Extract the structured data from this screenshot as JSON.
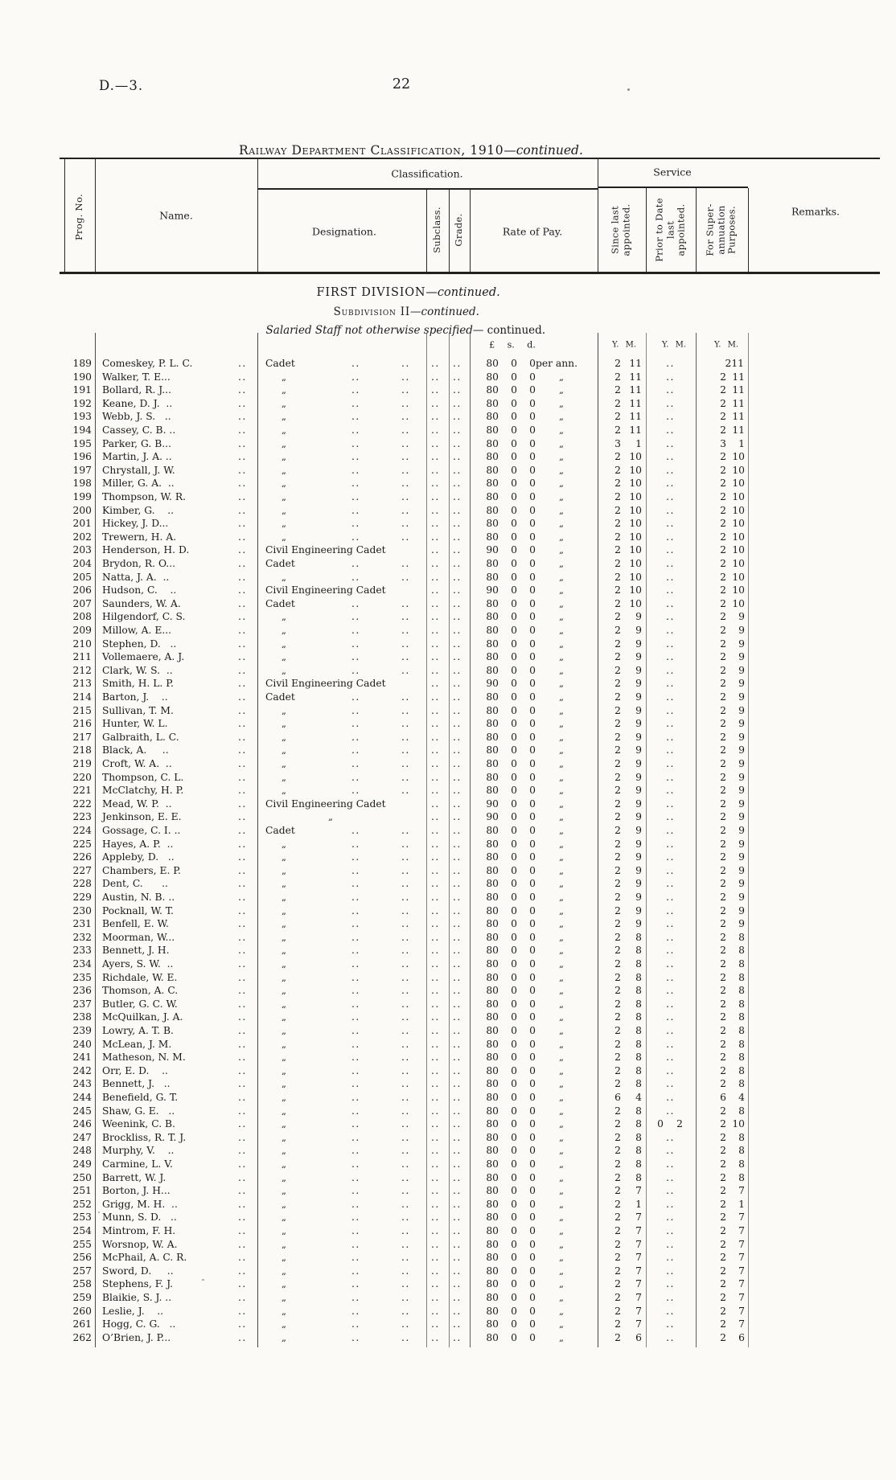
{
  "page": {
    "doc_ref": "D.—3.",
    "page_number": "22",
    "title_main": "Railway Department Classification, 1910",
    "title_cont": "—continued."
  },
  "table_header": {
    "classification": "Classification.",
    "service": "Service",
    "prog_no": "Prog. No.",
    "name": "Name.",
    "designation": "Designation.",
    "subclass": "Subclass.",
    "grade": "Grade.",
    "rate_of_pay": "Rate of Pay.",
    "since_last": "Since last\nappointed.",
    "prior_to": "Prior to Date\nlast\nappointed.",
    "super_purposes": "For Super-\nannuation\nPurposes.",
    "remarks": "Remarks."
  },
  "sections": {
    "division": "FIRST DIVISION",
    "division_cont": "—continued.",
    "subdivision": "Subdivision II",
    "subdivision_cont": "—continued.",
    "staff_note": "Salaried Staff not otherwise specified",
    "staff_note_cont": "— continued."
  },
  "units": {
    "currency": "£ s. d.",
    "ym": "Y. M."
  },
  "designations": {
    "cadet": "Cadet",
    "cec": "Civil Engineering Cadet",
    "ditto": "„"
  },
  "rate_s": "0",
  "rate_d": "0",
  "rate_first_suffix": "per ann.",
  "rate_ditto": "„",
  "dots": "..",
  "rows": [
    [
      189,
      "Comeskey, P. L. C.",
      "Cadet",
      "80",
      "2 11",
      "..",
      "211"
    ],
    [
      190,
      "Walker, T. E...",
      "dq",
      "80",
      "2 11",
      "..",
      "2 11"
    ],
    [
      191,
      "Bollard, R. J...",
      "dq",
      "80",
      "2 11",
      "..",
      "2 11"
    ],
    [
      192,
      "Keane, D. J.  ..",
      "dq",
      "80",
      "2 11",
      "..",
      "2 11"
    ],
    [
      193,
      "Webb, J. S.   ..",
      "dq",
      "80",
      "2 11",
      "..",
      "2 11"
    ],
    [
      194,
      "Cassey, C. B. ..",
      "dq",
      "80",
      "2 11",
      "..",
      "2 11"
    ],
    [
      195,
      "Parker, G. B...",
      "dq",
      "80",
      "3 1",
      "..",
      "3 1"
    ],
    [
      196,
      "Martin, J. A. ..",
      "dq",
      "80",
      "2 10",
      "..",
      "2 10"
    ],
    [
      197,
      "Chrystall, J. W.",
      "dq",
      "80",
      "2 10",
      "..",
      "2 10"
    ],
    [
      198,
      "Miller, G. A.  ..",
      "dq",
      "80",
      "2 10",
      "..",
      "2 10"
    ],
    [
      199,
      "Thompson, W. R.",
      "dq",
      "80",
      "2 10",
      "..",
      "2 10"
    ],
    [
      200,
      "Kimber, G.    ..",
      "dq",
      "80",
      "2 10",
      "..",
      "2 10"
    ],
    [
      201,
      "Hickey, J. D...",
      "dq",
      "80",
      "2 10",
      "..",
      "2 10"
    ],
    [
      202,
      "Trewern, H. A.",
      "dq",
      "80",
      "2 10",
      "..",
      "2 10"
    ],
    [
      203,
      "Henderson, H. D.",
      "CEC",
      "90",
      "2 10",
      "..",
      "2 10"
    ],
    [
      204,
      "Brydon, R. O...",
      "Cadet",
      "80",
      "2 10",
      "..",
      "2 10"
    ],
    [
      205,
      "Natta, J. A.  ..",
      "dq",
      "80",
      "2 10",
      "..",
      "2 10"
    ],
    [
      206,
      "Hudson, C.    ..",
      "CEC",
      "90",
      "2 10",
      "..",
      "2 10"
    ],
    [
      207,
      "Saunders, W. A.",
      "Cadet",
      "80",
      "2 10",
      "..",
      "2 10"
    ],
    [
      208,
      "Hilgendorf, C. S.",
      "dq",
      "80",
      "2 9",
      "..",
      "2 9"
    ],
    [
      209,
      "Millow, A. E...",
      "dq",
      "80",
      "2 9",
      "..",
      "2 9"
    ],
    [
      210,
      "Stephen, D.   ..",
      "dq",
      "80",
      "2 9",
      "..",
      "2 9"
    ],
    [
      211,
      "Vollemaere, A. J.",
      "dq",
      "80",
      "2 9",
      "..",
      "2 9"
    ],
    [
      212,
      "Clark, W. S.  ..",
      "dq",
      "80",
      "2 9",
      "..",
      "2 9"
    ],
    [
      213,
      "Smith, H. L. P.",
      "CEC",
      "90",
      "2 9",
      "..",
      "2 9"
    ],
    [
      214,
      "Barton, J.    ..",
      "Cadet",
      "80",
      "2 9",
      "..",
      "2 9"
    ],
    [
      215,
      "Sullivan, T. M.",
      "dq",
      "80",
      "2 9",
      "..",
      "2 9"
    ],
    [
      216,
      "Hunter, W. L.",
      "dq",
      "80",
      "2 9",
      "..",
      "2 9"
    ],
    [
      217,
      "Galbraith, L. C.",
      "dq",
      "80",
      "2 9",
      "..",
      "2 9"
    ],
    [
      218,
      "Black, A.     ..",
      "dq",
      "80",
      "2 9",
      "..",
      "2 9"
    ],
    [
      219,
      "Croft, W. A.  ..",
      "dq",
      "80",
      "2 9",
      "..",
      "2 9"
    ],
    [
      220,
      "Thompson, C. L.",
      "dq",
      "80",
      "2 9",
      "..",
      "2 9"
    ],
    [
      221,
      "McClatchy, H. P.",
      "dq",
      "80",
      "2 9",
      "..",
      "2 9"
    ],
    [
      222,
      "Mead, W. P.  ..",
      "CEC",
      "90",
      "2 9",
      "..",
      "2 9"
    ],
    [
      223,
      "Jenkinson, E. E.",
      "dqc",
      "90",
      "2 9",
      "..",
      "2 9"
    ],
    [
      224,
      "Gossage, C. I. ..",
      "Cadet",
      "80",
      "2 9",
      "..",
      "2 9"
    ],
    [
      225,
      "Hayes, A. P.  ..",
      "dq",
      "80",
      "2 9",
      "..",
      "2 9"
    ],
    [
      226,
      "Appleby, D.   ..",
      "dq",
      "80",
      "2 9",
      "..",
      "2 9"
    ],
    [
      227,
      "Chambers, E. P.",
      "dq",
      "80",
      "2 9",
      "..",
      "2 9"
    ],
    [
      228,
      "Dent, C.      ..",
      "dq",
      "80",
      "2 9",
      "..",
      "2 9"
    ],
    [
      229,
      "Austin, N. B. ..",
      "dq",
      "80",
      "2 9",
      "..",
      "2 9"
    ],
    [
      230,
      "Pocknall, W. T.",
      "dq",
      "80",
      "2 9",
      "..",
      "2 9"
    ],
    [
      231,
      "Benfell, E. W.",
      "dq",
      "80",
      "2 9",
      "..",
      "2 9"
    ],
    [
      232,
      "Moorman, W...",
      "dq",
      "80",
      "2 8",
      "..",
      "2 8"
    ],
    [
      233,
      "Bennett, J. H.",
      "dq",
      "80",
      "2 8",
      "..",
      "2 8"
    ],
    [
      234,
      "Ayers, S. W.  ..",
      "dq",
      "80",
      "2 8",
      "..",
      "2 8"
    ],
    [
      235,
      "Richdale, W. E.",
      "dq",
      "80",
      "2 8",
      "..",
      "2 8"
    ],
    [
      236,
      "Thomson, A. C.",
      "dq",
      "80",
      "2 8",
      "..",
      "2 8"
    ],
    [
      237,
      "Butler, G. C. W.",
      "dq",
      "80",
      "2 8",
      "..",
      "2 8"
    ],
    [
      238,
      "McQuilkan, J. A.",
      "dq",
      "80",
      "2 8",
      "..",
      "2 8"
    ],
    [
      239,
      "Lowry, A. T. B.",
      "dq",
      "80",
      "2 8",
      "..",
      "2 8"
    ],
    [
      240,
      "McLean, J. M.",
      "dq",
      "80",
      "2 8",
      "..",
      "2 8"
    ],
    [
      241,
      "Matheson, N. M.",
      "dq",
      "80",
      "2 8",
      "..",
      "2 8"
    ],
    [
      242,
      "Orr, E. D.    ..",
      "dq",
      "80",
      "2 8",
      "..",
      "2 8"
    ],
    [
      243,
      "Bennett, J.   ..",
      "dq",
      "80",
      "2 8",
      "..",
      "2 8"
    ],
    [
      244,
      "Benefield, G. T.",
      "dq",
      "80",
      "6 4",
      "..",
      "6 4"
    ],
    [
      245,
      "Shaw, G. E.   ..",
      "dq",
      "80",
      "2 8",
      "..",
      "2 8"
    ],
    [
      246,
      "Weenink, C. B.",
      "dq",
      "80",
      "2 8",
      "0 2",
      "2 10"
    ],
    [
      247,
      "Brockliss, R. T. J.",
      "dq",
      "80",
      "2 8",
      "..",
      "2 8"
    ],
    [
      248,
      "Murphy, V.    ..",
      "dq",
      "80",
      "2 8",
      "..",
      "2 8"
    ],
    [
      249,
      "Carmine, L. V.",
      "dq",
      "80",
      "2 8",
      "..",
      "2 8"
    ],
    [
      250,
      "Barrett, W. J.",
      "dq",
      "80",
      "2 8",
      "..",
      "2 8"
    ],
    [
      251,
      "Borton, J. H...",
      "dq",
      "80",
      "2 7",
      "..",
      "2 7"
    ],
    [
      252,
      "Grigg, M. H.  ..",
      "dq",
      "80",
      "2 1",
      "..",
      "2 1"
    ],
    [
      253,
      "Munn, S. D.   ..",
      "dq",
      "80",
      "2 7",
      "..",
      "2 7"
    ],
    [
      254,
      "Mintrom, F. H.",
      "dq",
      "80",
      "2 7",
      "..",
      "2 7"
    ],
    [
      255,
      "Worsnop, W. A.",
      "dq",
      "80",
      "2 7",
      "..",
      "2 7"
    ],
    [
      256,
      "McPhail, A. C. R.",
      "dq",
      "80",
      "2 7",
      "..",
      "2 7"
    ],
    [
      257,
      "Sword, D.     ..",
      "dq",
      "80",
      "2 7",
      "..",
      "2 7"
    ],
    [
      258,
      "Stephens, F. J.",
      "dq",
      "80",
      "2 7",
      "..",
      "2 7"
    ],
    [
      259,
      "Blaikie, S. J. ..",
      "dq",
      "80",
      "2 7",
      "..",
      "2 7"
    ],
    [
      260,
      "Leslie, J.    ..",
      "dq",
      "80",
      "2 7",
      "..",
      "2 7"
    ],
    [
      261,
      "Hogg, C. G.   ..",
      "dq",
      "80",
      "2 7",
      "..",
      "2 7"
    ],
    [
      262,
      "O’Brien, J. P...",
      "dq",
      "80",
      "2 6",
      "..",
      "2 6"
    ]
  ]
}
